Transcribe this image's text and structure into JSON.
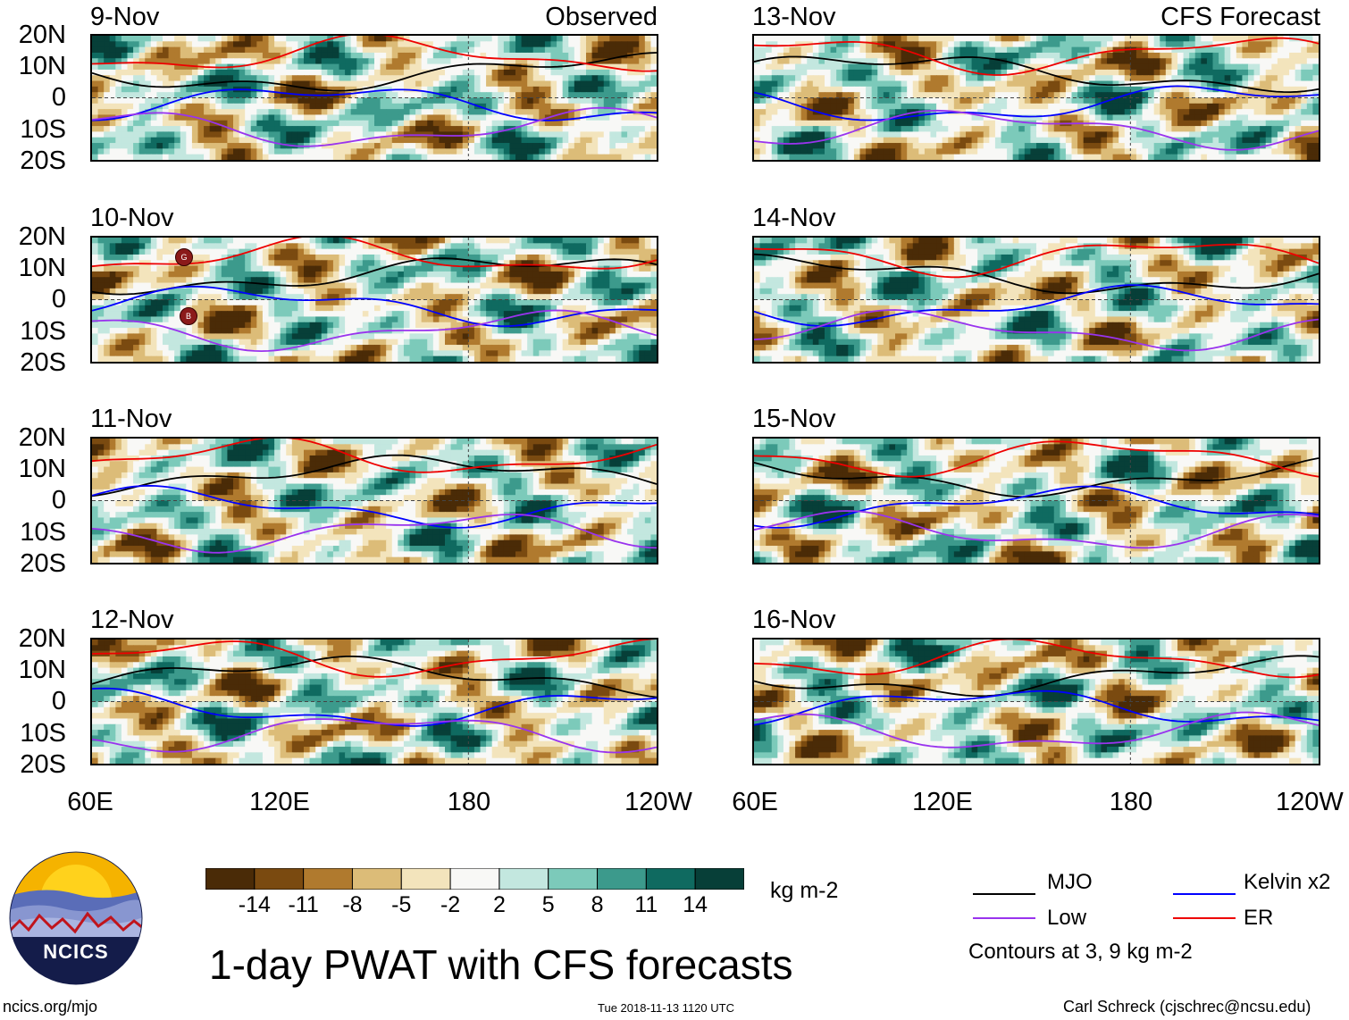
{
  "chart_data": {
    "type": "heatmap",
    "title": "1-day PWAT with CFS forecasts",
    "columns": [
      {
        "name": "observed",
        "corner_label": "Observed",
        "dates": [
          "9-Nov",
          "10-Nov",
          "11-Nov",
          "12-Nov"
        ]
      },
      {
        "name": "forecast",
        "corner_label": "CFS Forecast",
        "dates": [
          "13-Nov",
          "14-Nov",
          "15-Nov",
          "16-Nov"
        ]
      }
    ],
    "lat_ticks": [
      "20N",
      "10N",
      "0",
      "10S",
      "20S"
    ],
    "lon_ticks": [
      "60E",
      "120E",
      "180",
      "120W"
    ],
    "colorbar": {
      "unit": "kg m-2",
      "labels": [
        "-14",
        "-11",
        "-8",
        "-5",
        "-2",
        "2",
        "5",
        "8",
        "11",
        "14"
      ],
      "colors": [
        "#4a2b07",
        "#7a4a10",
        "#b07a2e",
        "#dcbc78",
        "#f3e4bc",
        "#f8f8f6",
        "#c3e7df",
        "#7ccaba",
        "#3c9a8c",
        "#0f6a60",
        "#073f38"
      ]
    },
    "legend": {
      "items": [
        {
          "key": "mjo",
          "label": "MJO",
          "color": "#000000"
        },
        {
          "key": "kelvin",
          "label": "Kelvin x2",
          "color": "#0000ff"
        },
        {
          "key": "low",
          "label": "Low",
          "color": "#9933ee"
        },
        {
          "key": "er",
          "label": "ER",
          "color": "#ee0000"
        }
      ],
      "note": "Contours at 3, 9 kg m-2"
    }
  },
  "logo": {
    "text": "NCICS"
  },
  "footer": {
    "left": "ncics.org/mjo",
    "center": "Tue 2018-11-13 1120 UTC",
    "right": "Carl Schreck (cjschrec@ncsu.edu)"
  },
  "storm_markers": [
    "G",
    "B"
  ]
}
